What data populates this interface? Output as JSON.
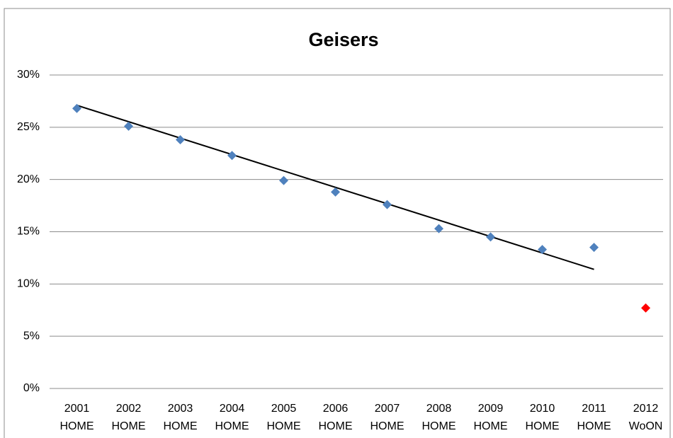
{
  "chart_data": {
    "type": "scatter",
    "title": "Geisers",
    "categories": [
      [
        "2001",
        "HOME"
      ],
      [
        "2002",
        "HOME"
      ],
      [
        "2003",
        "HOME"
      ],
      [
        "2004",
        "HOME"
      ],
      [
        "2005",
        "HOME"
      ],
      [
        "2006",
        "HOME"
      ],
      [
        "2007",
        "HOME"
      ],
      [
        "2008",
        "HOME"
      ],
      [
        "2009",
        "HOME"
      ],
      [
        "2010",
        "HOME"
      ],
      [
        "2011",
        "HOME"
      ],
      [
        "2012",
        "WoON"
      ]
    ],
    "series": [
      {
        "color": "#4f81bd",
        "values": [
          26.8,
          25.1,
          23.8,
          22.3,
          19.9,
          18.8,
          17.6,
          15.3,
          14.5,
          13.3,
          13.5,
          null
        ]
      },
      {
        "color": "#ff0000",
        "values": [
          null,
          null,
          null,
          null,
          null,
          null,
          null,
          null,
          null,
          null,
          null,
          7.7
        ]
      }
    ],
    "trendline": {
      "color": "#000000",
      "values": [
        27.1,
        11.4
      ]
    },
    "ylim": [
      0,
      30
    ],
    "yticks": [
      {
        "value": 0,
        "label": "0%"
      },
      {
        "value": 5,
        "label": "5%"
      },
      {
        "value": 10,
        "label": "10%"
      },
      {
        "value": 15,
        "label": "15%"
      },
      {
        "value": 20,
        "label": "20%"
      },
      {
        "value": 25,
        "label": "25%"
      },
      {
        "value": 30,
        "label": "30%"
      }
    ],
    "grid": true
  }
}
